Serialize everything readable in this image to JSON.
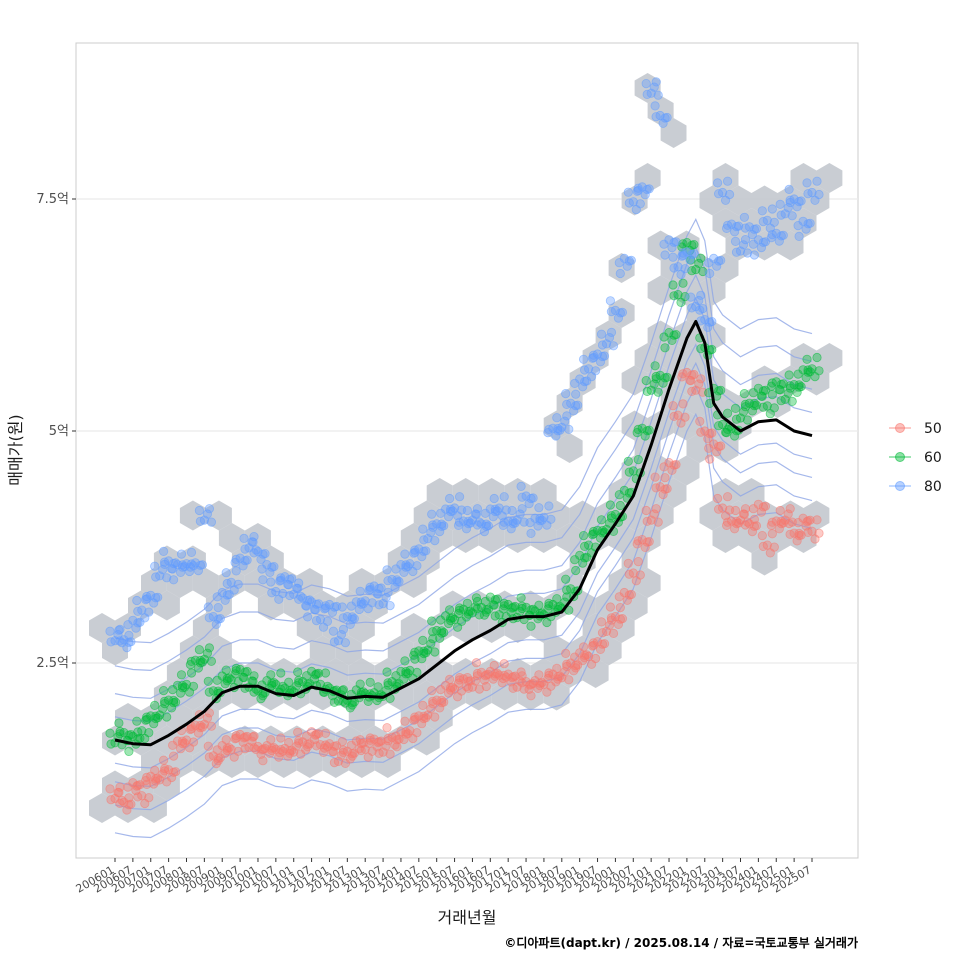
{
  "chart_data": {
    "type": "scatter",
    "xlabel": "거래년월",
    "ylabel": "매매가(원)",
    "caption": "©디아파트(dapt.kr) / 2025.08.14 / 자료=국토교통부 실거래가",
    "x_ticks": [
      "200601",
      "200607",
      "200701",
      "200707",
      "200801",
      "200807",
      "200901",
      "200907",
      "201001",
      "201007",
      "201101",
      "201107",
      "201201",
      "201207",
      "201301",
      "201307",
      "201401",
      "201407",
      "201501",
      "201507",
      "201601",
      "201607",
      "201701",
      "201707",
      "201801",
      "201807",
      "201901",
      "201907",
      "202001",
      "202007",
      "202101",
      "202107",
      "202201",
      "202207",
      "202301",
      "202307",
      "202401",
      "202407",
      "202501",
      "202507"
    ],
    "y_ticks": [
      {
        "value": 2.5,
        "label": "2.5억"
      },
      {
        "value": 5.0,
        "label": "5억"
      },
      {
        "value": 7.5,
        "label": "7.5억"
      }
    ],
    "ylim": [
      0.6,
      9.4
    ],
    "grid": "horizontal",
    "legend_position": "right",
    "colors": {
      "50": "#f8766d",
      "60": "#00ba38",
      "80": "#619cff",
      "hex": "#bfc4cb",
      "contour": "#8fa6e6",
      "trend": "#000000"
    },
    "series": [
      {
        "name": "50",
        "points": [
          [
            "200601",
            1.1
          ],
          [
            "200604",
            1.0
          ],
          [
            "200607",
            1.15
          ],
          [
            "200610",
            1.1
          ],
          [
            "200701",
            1.25
          ],
          [
            "200704",
            1.3
          ],
          [
            "200707",
            1.35
          ],
          [
            "200710",
            1.6
          ],
          [
            "200801",
            1.7
          ],
          [
            "200804",
            1.8
          ],
          [
            "200807",
            1.9
          ],
          [
            "200810",
            1.5
          ],
          [
            "200901",
            1.55
          ],
          [
            "200904",
            1.6
          ],
          [
            "200907",
            1.7
          ],
          [
            "200910",
            1.65
          ],
          [
            "201001",
            1.6
          ],
          [
            "201004",
            1.55
          ],
          [
            "201007",
            1.6
          ],
          [
            "201010",
            1.55
          ],
          [
            "201101",
            1.6
          ],
          [
            "201104",
            1.65
          ],
          [
            "201107",
            1.7
          ],
          [
            "201110",
            1.65
          ],
          [
            "201201",
            1.6
          ],
          [
            "201204",
            1.5
          ],
          [
            "201207",
            1.55
          ],
          [
            "201210",
            1.6
          ],
          [
            "201301",
            1.6
          ],
          [
            "201304",
            1.65
          ],
          [
            "201307",
            1.6
          ],
          [
            "201310",
            1.7
          ],
          [
            "201401",
            1.7
          ],
          [
            "201404",
            1.8
          ],
          [
            "201407",
            1.9
          ],
          [
            "201410",
            2.0
          ],
          [
            "201501",
            2.1
          ],
          [
            "201504",
            2.2
          ],
          [
            "201507",
            2.25
          ],
          [
            "201510",
            2.3
          ],
          [
            "201601",
            2.3
          ],
          [
            "201604",
            2.4
          ],
          [
            "201607",
            2.35
          ],
          [
            "201610",
            2.4
          ],
          [
            "201701",
            2.35
          ],
          [
            "201704",
            2.3
          ],
          [
            "201707",
            2.3
          ],
          [
            "201710",
            2.25
          ],
          [
            "201801",
            2.3
          ],
          [
            "201804",
            2.35
          ],
          [
            "201807",
            2.4
          ],
          [
            "201810",
            2.5
          ],
          [
            "201901",
            2.55
          ],
          [
            "201904",
            2.6
          ],
          [
            "201907",
            2.7
          ],
          [
            "201910",
            2.9
          ],
          [
            "202001",
            3.0
          ],
          [
            "202004",
            3.2
          ],
          [
            "202007",
            3.5
          ],
          [
            "202010",
            3.8
          ],
          [
            "202101",
            4.1
          ],
          [
            "202104",
            4.4
          ],
          [
            "202107",
            4.6
          ],
          [
            "202110",
            5.2
          ],
          [
            "202201",
            5.6
          ],
          [
            "202204",
            5.5
          ],
          [
            "202207",
            5.0
          ],
          [
            "202210",
            4.8
          ],
          [
            "202301",
            4.2
          ],
          [
            "202304",
            4.0
          ],
          [
            "202307",
            4.1
          ],
          [
            "202310",
            4.0
          ],
          [
            "202401",
            4.15
          ],
          [
            "202404",
            3.8
          ],
          [
            "202407",
            4.0
          ],
          [
            "202410",
            4.1
          ],
          [
            "202501",
            3.9
          ],
          [
            "202504",
            4.0
          ],
          [
            "202507",
            3.95
          ]
        ]
      },
      {
        "name": "60",
        "points": [
          [
            "200601",
            1.7
          ],
          [
            "200604",
            1.75
          ],
          [
            "200607",
            1.65
          ],
          [
            "200610",
            1.8
          ],
          [
            "200701",
            1.9
          ],
          [
            "200704",
            2.0
          ],
          [
            "200707",
            2.1
          ],
          [
            "200710",
            2.2
          ],
          [
            "200801",
            2.3
          ],
          [
            "200804",
            2.5
          ],
          [
            "200807",
            2.6
          ],
          [
            "200810",
            2.2
          ],
          [
            "200901",
            2.3
          ],
          [
            "200904",
            2.35
          ],
          [
            "200907",
            2.4
          ],
          [
            "200910",
            2.3
          ],
          [
            "201001",
            2.2
          ],
          [
            "201004",
            2.25
          ],
          [
            "201007",
            2.3
          ],
          [
            "201010",
            2.2
          ],
          [
            "201101",
            2.25
          ],
          [
            "201104",
            2.3
          ],
          [
            "201107",
            2.35
          ],
          [
            "201110",
            2.3
          ],
          [
            "201201",
            2.2
          ],
          [
            "201204",
            2.15
          ],
          [
            "201207",
            2.1
          ],
          [
            "201210",
            2.15
          ],
          [
            "201301",
            2.2
          ],
          [
            "201304",
            2.15
          ],
          [
            "201307",
            2.2
          ],
          [
            "201310",
            2.3
          ],
          [
            "201401",
            2.35
          ],
          [
            "201404",
            2.45
          ],
          [
            "201407",
            2.6
          ],
          [
            "201410",
            2.7
          ],
          [
            "201501",
            2.85
          ],
          [
            "201504",
            2.95
          ],
          [
            "201507",
            3.0
          ],
          [
            "201510",
            3.05
          ],
          [
            "201601",
            3.1
          ],
          [
            "201604",
            3.1
          ],
          [
            "201607",
            3.15
          ],
          [
            "201610",
            3.05
          ],
          [
            "201701",
            3.1
          ],
          [
            "201704",
            3.05
          ],
          [
            "201707",
            3.1
          ],
          [
            "201710",
            3.0
          ],
          [
            "201801",
            3.05
          ],
          [
            "201804",
            3.1
          ],
          [
            "201807",
            3.15
          ],
          [
            "201810",
            3.3
          ],
          [
            "201901",
            3.6
          ],
          [
            "201904",
            3.8
          ],
          [
            "201907",
            3.9
          ],
          [
            "201910",
            4.0
          ],
          [
            "202001",
            4.1
          ],
          [
            "202004",
            4.3
          ],
          [
            "202007",
            4.6
          ],
          [
            "202010",
            5.0
          ],
          [
            "202101",
            5.5
          ],
          [
            "202104",
            5.6
          ],
          [
            "202107",
            6.0
          ],
          [
            "202110",
            6.5
          ],
          [
            "202201",
            7.0
          ],
          [
            "202204",
            6.8
          ],
          [
            "202207",
            5.9
          ],
          [
            "202210",
            5.4
          ],
          [
            "202301",
            5.1
          ],
          [
            "202304",
            5.0
          ],
          [
            "202307",
            5.2
          ],
          [
            "202310",
            5.3
          ],
          [
            "202401",
            5.4
          ],
          [
            "202404",
            5.3
          ],
          [
            "202407",
            5.5
          ],
          [
            "202410",
            5.4
          ],
          [
            "202501",
            5.5
          ],
          [
            "202504",
            5.6
          ],
          [
            "202507",
            5.7
          ]
        ]
      },
      {
        "name": "80",
        "points": [
          [
            "200601",
            2.8
          ],
          [
            "200604",
            2.75
          ],
          [
            "200607",
            2.9
          ],
          [
            "200610",
            3.1
          ],
          [
            "200701",
            3.2
          ],
          [
            "200704",
            3.5
          ],
          [
            "200707",
            3.6
          ],
          [
            "200710",
            3.5
          ],
          [
            "200801",
            3.6
          ],
          [
            "200804",
            3.55
          ],
          [
            "200807",
            4.1
          ],
          [
            "200810",
            3.0
          ],
          [
            "200901",
            3.2
          ],
          [
            "200904",
            3.4
          ],
          [
            "200907",
            3.6
          ],
          [
            "200910",
            3.8
          ],
          [
            "201001",
            3.7
          ],
          [
            "201004",
            3.5
          ],
          [
            "201007",
            3.3
          ],
          [
            "201010",
            3.4
          ],
          [
            "201101",
            3.3
          ],
          [
            "201104",
            3.2
          ],
          [
            "201107",
            3.1
          ],
          [
            "201110",
            3.0
          ],
          [
            "201201",
            3.1
          ],
          [
            "201204",
            2.8
          ],
          [
            "201207",
            3.0
          ],
          [
            "201210",
            3.1
          ],
          [
            "201301",
            3.2
          ],
          [
            "201304",
            3.3
          ],
          [
            "201307",
            3.2
          ],
          [
            "201310",
            3.4
          ],
          [
            "201401",
            3.5
          ],
          [
            "201404",
            3.6
          ],
          [
            "201407",
            3.7
          ],
          [
            "201410",
            3.9
          ],
          [
            "201501",
            4.0
          ],
          [
            "201504",
            4.1
          ],
          [
            "201507",
            4.2
          ],
          [
            "201510",
            4.0
          ],
          [
            "201601",
            4.1
          ],
          [
            "201604",
            4.0
          ],
          [
            "201607",
            4.1
          ],
          [
            "201610",
            4.2
          ],
          [
            "201701",
            4.0
          ],
          [
            "201704",
            4.1
          ],
          [
            "201707",
            4.3
          ],
          [
            "201710",
            4.0
          ],
          [
            "201801",
            4.1
          ],
          [
            "201804",
            5.0
          ],
          [
            "201807",
            5.1
          ],
          [
            "201810",
            5.3
          ],
          [
            "201901",
            5.5
          ],
          [
            "201904",
            5.7
          ],
          [
            "201907",
            5.8
          ],
          [
            "201910",
            6.0
          ],
          [
            "202001",
            6.3
          ],
          [
            "202004",
            6.8
          ],
          [
            "202007",
            7.5
          ],
          [
            "202010",
            7.6
          ],
          [
            "202101",
            8.7
          ],
          [
            "202104",
            8.4
          ],
          [
            "202107",
            7.0
          ],
          [
            "202110",
            6.8
          ],
          [
            "202201",
            6.9
          ],
          [
            "202204",
            6.4
          ],
          [
            "202207",
            6.2
          ],
          [
            "202210",
            6.8
          ],
          [
            "202301",
            7.6
          ],
          [
            "202304",
            7.2
          ],
          [
            "202307",
            7.0
          ],
          [
            "202310",
            7.2
          ],
          [
            "202401",
            7.0
          ],
          [
            "202404",
            7.3
          ],
          [
            "202407",
            7.1
          ],
          [
            "202410",
            7.4
          ],
          [
            "202501",
            7.5
          ],
          [
            "202504",
            7.2
          ],
          [
            "202507",
            7.6
          ]
        ]
      }
    ],
    "trend": [
      [
        "200601",
        1.67
      ],
      [
        "200607",
        1.63
      ],
      [
        "200701",
        1.62
      ],
      [
        "200707",
        1.72
      ],
      [
        "200801",
        1.84
      ],
      [
        "200807",
        1.98
      ],
      [
        "200901",
        2.18
      ],
      [
        "200907",
        2.25
      ],
      [
        "201001",
        2.25
      ],
      [
        "201007",
        2.17
      ],
      [
        "201101",
        2.15
      ],
      [
        "201107",
        2.24
      ],
      [
        "201201",
        2.2
      ],
      [
        "201207",
        2.12
      ],
      [
        "201301",
        2.14
      ],
      [
        "201307",
        2.13
      ],
      [
        "201401",
        2.23
      ],
      [
        "201407",
        2.33
      ],
      [
        "201501",
        2.48
      ],
      [
        "201507",
        2.63
      ],
      [
        "201601",
        2.75
      ],
      [
        "201607",
        2.85
      ],
      [
        "201701",
        2.97
      ],
      [
        "201707",
        3.0
      ],
      [
        "201801",
        3.0
      ],
      [
        "201807",
        3.05
      ],
      [
        "201901",
        3.3
      ],
      [
        "201907",
        3.72
      ],
      [
        "202001",
        4.0
      ],
      [
        "202007",
        4.3
      ],
      [
        "202101",
        4.85
      ],
      [
        "202107",
        5.45
      ],
      [
        "202201",
        6.0
      ],
      [
        "202204",
        6.18
      ],
      [
        "202207",
        5.95
      ],
      [
        "202210",
        5.3
      ],
      [
        "202301",
        5.15
      ],
      [
        "202307",
        5.0
      ],
      [
        "202401",
        5.1
      ],
      [
        "202407",
        5.12
      ],
      [
        "202501",
        5.0
      ],
      [
        "202507",
        4.95
      ]
    ]
  }
}
